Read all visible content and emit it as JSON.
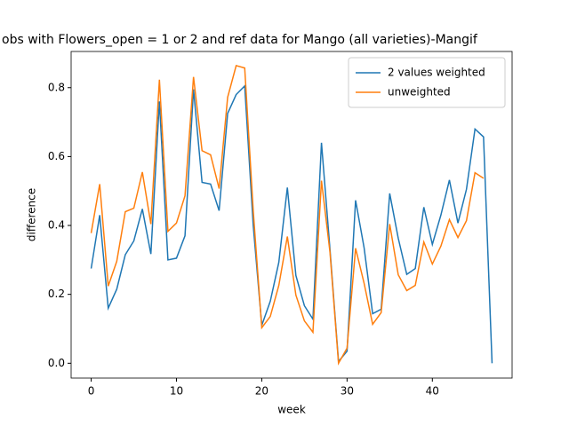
{
  "chart_data": {
    "type": "line",
    "title": "obs with Flowers_open = 1 or 2 and ref data for Mango (all varieties)-Mangif",
    "xlabel": "week",
    "ylabel": "difference",
    "x": [
      0,
      1,
      2,
      3,
      4,
      5,
      6,
      7,
      8,
      9,
      10,
      11,
      12,
      13,
      14,
      15,
      16,
      17,
      18,
      19,
      20,
      21,
      22,
      23,
      24,
      25,
      26,
      27,
      28,
      29,
      30,
      31,
      32,
      33,
      34,
      35,
      36,
      37,
      38,
      39,
      40,
      41,
      42,
      43,
      44,
      45,
      46,
      47
    ],
    "series": [
      {
        "name": "2 values weighted",
        "color": "#1f77b4",
        "values": [
          0.275,
          0.43,
          0.16,
          0.215,
          0.315,
          0.355,
          0.448,
          0.317,
          0.76,
          0.3,
          0.305,
          0.37,
          0.795,
          0.525,
          0.52,
          0.443,
          0.725,
          0.78,
          0.805,
          0.4,
          0.11,
          0.18,
          0.293,
          0.51,
          0.255,
          0.167,
          0.128,
          0.64,
          0.33,
          0.005,
          0.035,
          0.473,
          0.335,
          0.144,
          0.157,
          0.493,
          0.363,
          0.258,
          0.275,
          0.453,
          0.345,
          0.43,
          0.532,
          0.407,
          0.505,
          0.68,
          0.657,
          0.0
        ]
      },
      {
        "name": "unweighted",
        "color": "#ff7f0e",
        "values": [
          0.378,
          0.52,
          0.224,
          0.296,
          0.44,
          0.45,
          0.555,
          0.404,
          0.823,
          0.383,
          0.407,
          0.486,
          0.831,
          0.617,
          0.605,
          0.507,
          0.772,
          0.864,
          0.857,
          0.443,
          0.103,
          0.136,
          0.226,
          0.368,
          0.198,
          0.123,
          0.09,
          0.53,
          0.322,
          0.0,
          0.044,
          0.334,
          0.232,
          0.113,
          0.147,
          0.404,
          0.257,
          0.211,
          0.226,
          0.352,
          0.288,
          0.34,
          0.417,
          0.365,
          0.414,
          0.553,
          0.537,
          null
        ]
      }
    ],
    "xlim": [
      -2.35,
      49.35
    ],
    "xticks": [
      0,
      10,
      20,
      30,
      40
    ],
    "ylim": [
      -0.043,
      0.905
    ],
    "yticks": [
      {
        "value": 0,
        "label": "0.0"
      },
      {
        "value": 0.2,
        "label": "0.2"
      },
      {
        "value": 0.4,
        "label": "0.4"
      },
      {
        "value": 0.6,
        "label": "0.6"
      },
      {
        "value": 0.8,
        "label": "0.8"
      }
    ],
    "legend": "upper right",
    "grid": false
  }
}
